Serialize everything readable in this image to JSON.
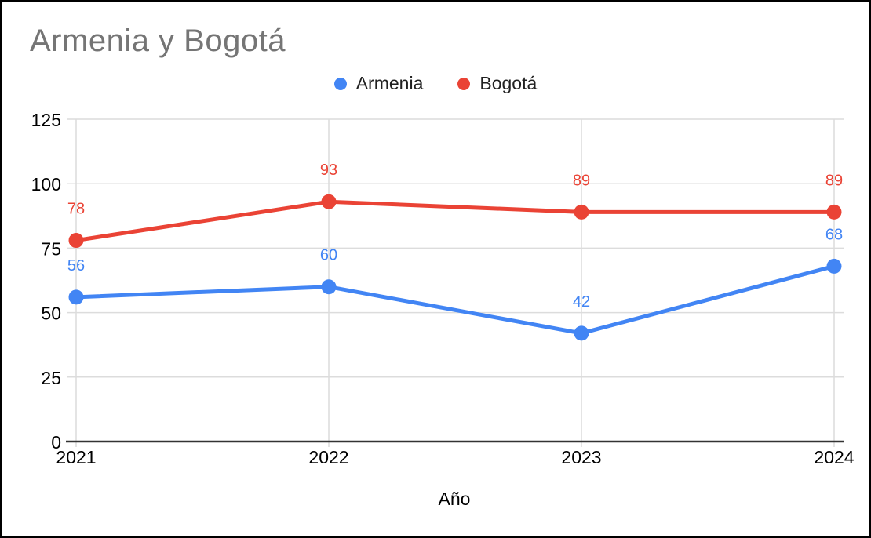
{
  "chart_data": {
    "type": "line",
    "title": "Armenia y Bogotá",
    "xlabel": "Año",
    "ylabel": "",
    "categories": [
      "2021",
      "2022",
      "2023",
      "2024"
    ],
    "series": [
      {
        "name": "Armenia",
        "color": "#4285F4",
        "values": [
          56,
          60,
          42,
          68
        ]
      },
      {
        "name": "Bogotá",
        "color": "#EA4335",
        "values": [
          78,
          93,
          89,
          89
        ]
      }
    ],
    "ylim": [
      0,
      125
    ],
    "yticks": [
      0,
      25,
      50,
      75,
      100,
      125
    ],
    "grid": true,
    "legend_position": "top",
    "point_labels": true
  },
  "colors": {
    "title_text": "#757575",
    "axis_text": "#000000",
    "gridline": "#dcdcdc",
    "axis_line": "#333333",
    "background": "#ffffff",
    "frame_border": "#000000"
  }
}
